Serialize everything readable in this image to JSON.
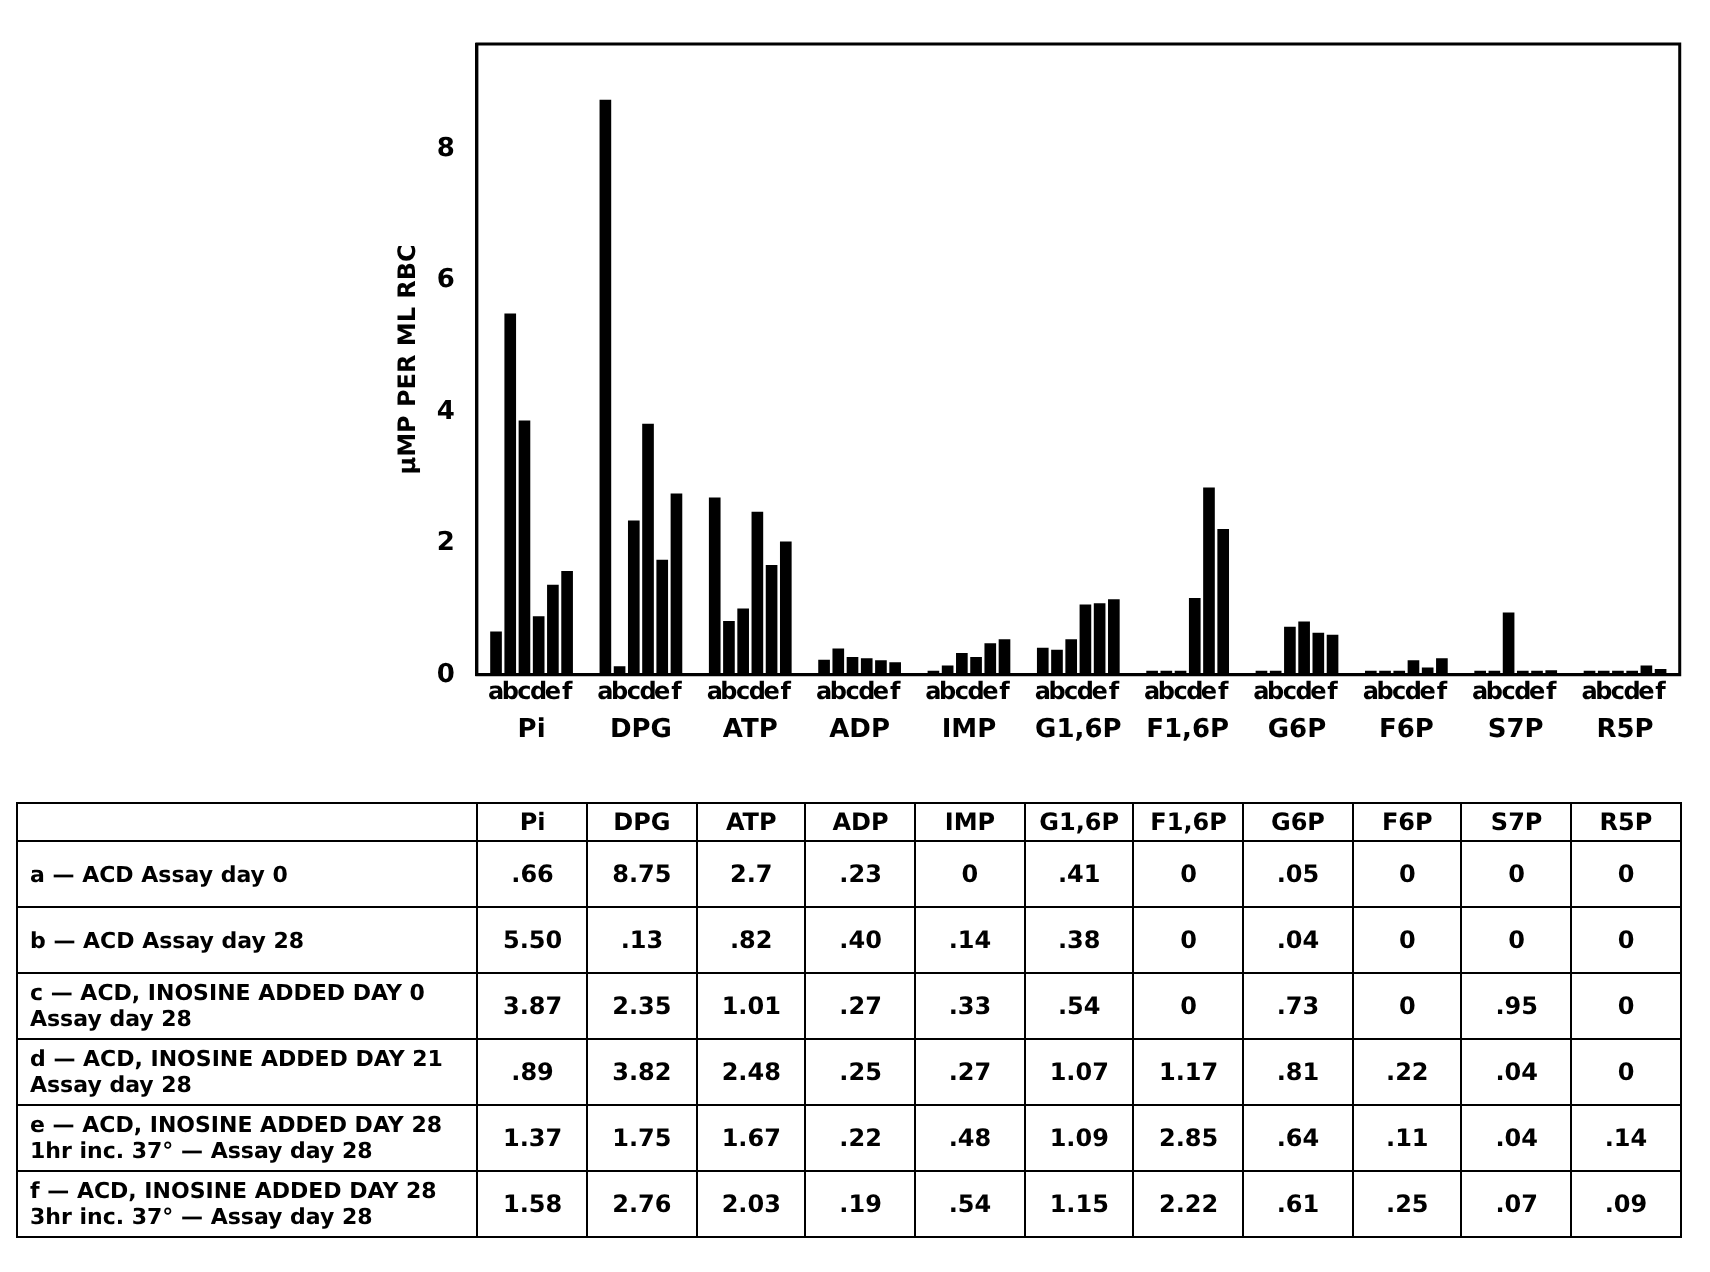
{
  "chart_data": {
    "type": "bar",
    "ylabel": "μMP PER ML RBC",
    "categories": [
      "Pi",
      "DPG",
      "ATP",
      "ADP",
      "IMP",
      "G1,6P",
      "F1,6P",
      "G6P",
      "F6P",
      "S7P",
      "R5P"
    ],
    "ylim": [
      0,
      9.6
    ],
    "yticks": [
      0,
      2,
      4,
      6,
      8
    ],
    "grid": false,
    "legend": false,
    "annotations": [
      "— ACD Assay day 0",
      "— ACD Assay day 28",
      "— ACD, INOSINE ADDED DAY 0 Assay day 28",
      "— ACD, INOSINE ADDED DAY 21 Assay day 28",
      "— ACD, INOSINE ADDED DAY 28 1hr inc. 37° — Assay day 28",
      "— ACD, INOSINE ADDED DAY 28 3hr inc. 37° — Assay day 28"
    ],
    "series": [
      {
        "name": "a",
        "color": "#000000",
        "values": [
          0.66,
          8.75,
          2.7,
          0.23,
          0,
          0.41,
          0,
          0.05,
          0,
          0,
          0
        ],
        "value_labels": [
          ".66",
          "8.75",
          "2.7",
          ".23",
          "0",
          ".41",
          "0",
          ".05",
          "0",
          "0",
          "0"
        ]
      },
      {
        "name": "b",
        "color": "#000000",
        "values": [
          5.5,
          0.13,
          0.82,
          0.4,
          0.14,
          0.38,
          0,
          0.04,
          0,
          0,
          0
        ],
        "value_labels": [
          "5.50",
          ".13",
          ".82",
          ".40",
          ".14",
          ".38",
          "0",
          ".04",
          "0",
          "0",
          "0"
        ]
      },
      {
        "name": "c",
        "color": "#000000",
        "values": [
          3.87,
          2.35,
          1.01,
          0.27,
          0.33,
          0.54,
          0,
          0.73,
          0,
          0.95,
          0
        ],
        "value_labels": [
          "3.87",
          "2.35",
          "1.01",
          ".27",
          ".33",
          ".54",
          "0",
          ".73",
          "0",
          ".95",
          "0"
        ]
      },
      {
        "name": "d",
        "color": "#000000",
        "values": [
          0.89,
          3.82,
          2.48,
          0.25,
          0.27,
          1.07,
          1.17,
          0.81,
          0.22,
          0.04,
          0
        ],
        "value_labels": [
          ".89",
          "3.82",
          "2.48",
          ".25",
          ".27",
          "1.07",
          "1.17",
          ".81",
          ".22",
          ".04",
          "0"
        ]
      },
      {
        "name": "e",
        "color": "#000000",
        "values": [
          1.37,
          1.75,
          1.67,
          0.22,
          0.48,
          1.09,
          2.85,
          0.64,
          0.11,
          0.04,
          0.14
        ],
        "value_labels": [
          "1.37",
          "1.75",
          "1.67",
          ".22",
          ".48",
          "1.09",
          "2.85",
          ".64",
          ".11",
          ".04",
          ".14"
        ]
      },
      {
        "name": "f",
        "color": "#000000",
        "values": [
          1.58,
          2.76,
          2.03,
          0.19,
          0.54,
          1.15,
          2.22,
          0.61,
          0.25,
          0.07,
          0.09
        ],
        "value_labels": [
          "1.58",
          "2.76",
          "2.03",
          ".19",
          ".54",
          "1.15",
          "2.22",
          ".61",
          ".25",
          ".07",
          ".09"
        ]
      }
    ]
  }
}
